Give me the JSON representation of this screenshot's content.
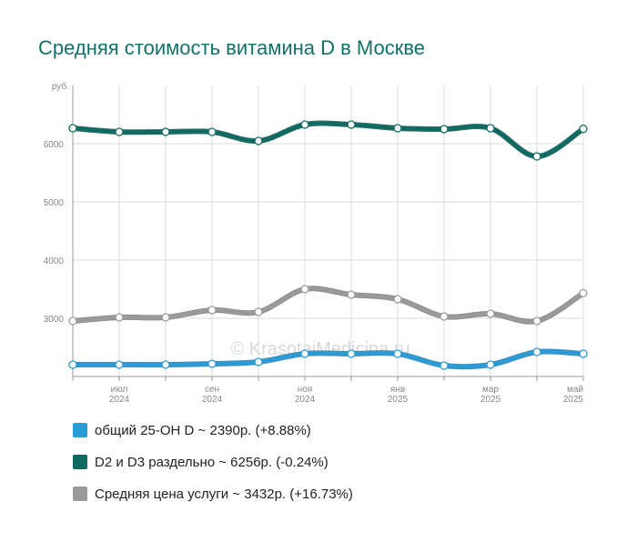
{
  "chart_data": {
    "type": "line",
    "title": "Средняя стоимость витамина D в Москве",
    "y_unit": "руб.",
    "watermark": "© KrasotaiMedicina.ru",
    "categories": [
      null,
      [
        "июл",
        "2024"
      ],
      null,
      [
        "сен",
        "2024"
      ],
      null,
      [
        "ноя",
        "2024"
      ],
      null,
      [
        "янв",
        "2025"
      ],
      null,
      [
        "мар",
        "2025"
      ],
      null,
      [
        "май",
        "2025"
      ]
    ],
    "ylim": [
      2000,
      7000
    ],
    "yticks": [
      3000,
      4000,
      5000,
      6000
    ],
    "grid": true,
    "series": [
      {
        "name": "общий 25-OH D ~ 2390р. (+8.88%)",
        "color": "#2a9bd6",
        "values": [
          2203,
          2203,
          2203,
          2219,
          2250,
          2391,
          2391,
          2391,
          2188,
          2203,
          2422,
          2390
        ]
      },
      {
        "name": "D2 и D3 раздельно ~ 6256р. (-0.24%)",
        "color": "#0f6b62",
        "values": [
          6266,
          6203,
          6203,
          6203,
          6047,
          6328,
          6328,
          6266,
          6250,
          6266,
          5781,
          6256
        ]
      },
      {
        "name": "Средняя цена услуги ~ 3432р. (+16.73%)",
        "color": "#9a9a9a",
        "values": [
          2953,
          3016,
          3016,
          3141,
          3109,
          3500,
          3406,
          3328,
          3031,
          3078,
          2953,
          3432
        ]
      }
    ]
  }
}
